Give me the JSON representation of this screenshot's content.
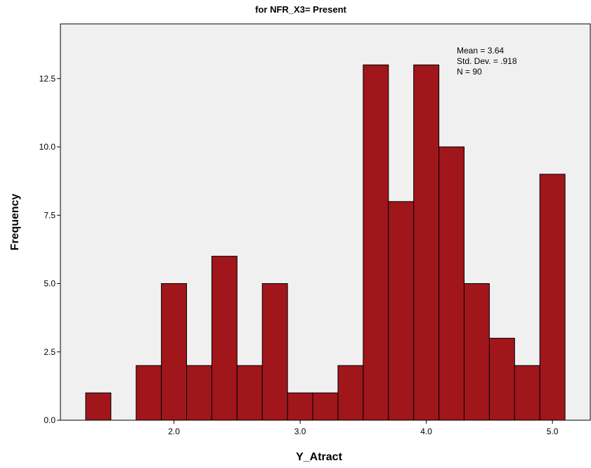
{
  "chart_data": {
    "type": "bar",
    "title": "for NFR_X3= Present",
    "xlabel": "Y_Atract",
    "ylabel": "Frequency",
    "x_ticks": [
      "2.0",
      "3.0",
      "4.0",
      "5.0"
    ],
    "y_ticks": [
      "0.0",
      "2.5",
      "5.0",
      "7.5",
      "10.0",
      "12.5"
    ],
    "xlim": [
      1.1,
      5.3
    ],
    "ylim": [
      0,
      14.5
    ],
    "bin_width": 0.2,
    "bins": [
      {
        "start": 1.3,
        "count": 1
      },
      {
        "start": 1.5,
        "count": 0
      },
      {
        "start": 1.7,
        "count": 2
      },
      {
        "start": 1.9,
        "count": 5
      },
      {
        "start": 2.1,
        "count": 2
      },
      {
        "start": 2.3,
        "count": 6
      },
      {
        "start": 2.5,
        "count": 2
      },
      {
        "start": 2.7,
        "count": 5
      },
      {
        "start": 2.9,
        "count": 1
      },
      {
        "start": 3.1,
        "count": 1
      },
      {
        "start": 3.3,
        "count": 2
      },
      {
        "start": 3.5,
        "count": 13
      },
      {
        "start": 3.7,
        "count": 8
      },
      {
        "start": 3.9,
        "count": 13
      },
      {
        "start": 4.1,
        "count": 10
      },
      {
        "start": 4.3,
        "count": 5
      },
      {
        "start": 4.5,
        "count": 3
      },
      {
        "start": 4.7,
        "count": 2
      },
      {
        "start": 4.9,
        "count": 9
      }
    ],
    "stats": {
      "mean": "Mean = 3.64",
      "std_dev": "Std. Dev. = .918",
      "n": "N = 90"
    },
    "colors": {
      "bar_fill": "#a0161b",
      "bar_stroke": "#000000",
      "plot_background": "#f0f0f0"
    }
  }
}
